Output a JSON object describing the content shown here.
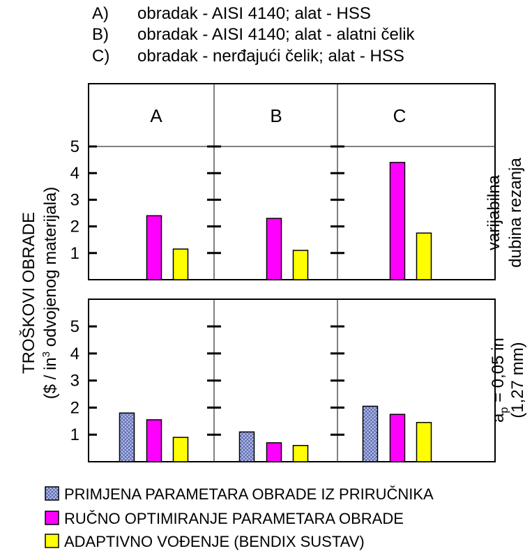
{
  "conditions": [
    {
      "key": "A)",
      "text": "obradak - AISI 4140; alat - HSS"
    },
    {
      "key": "B)",
      "text": "obradak - AISI 4140; alat - alatni čelik"
    },
    {
      "key": "C)",
      "text": "obradak - nerđajući čelik; alat - HSS"
    }
  ],
  "ylabel": {
    "line1": "TROŠKOVI OBRADE",
    "line2_pre": "($ / in",
    "line2_sup": "3",
    "line2_post": " odvojenog materijala)"
  },
  "colors": {
    "handbook": "#9aa6d6",
    "manual": "#ff00ff",
    "adaptive": "#ffff00"
  },
  "legend": [
    {
      "key": "handbook",
      "label": "PRIMJENA PARAMETARA OBRADE IZ PRIRUČNIKA",
      "pattern": "crosshatch"
    },
    {
      "key": "manual",
      "label": "RUČNO OPTIMIRANJE PARAMETARA OBRADE",
      "pattern": "solid"
    },
    {
      "key": "adaptive",
      "label": "ADAPTIVNO VOĐENJE (BENDIX SUSTAV)",
      "pattern": "solid"
    }
  ],
  "chart_data": [
    {
      "type": "bar",
      "panel": "top",
      "side_label_line1": "varijabilna",
      "side_label_line2": "dubina rezanja",
      "categories": [
        "A",
        "B",
        "C"
      ],
      "ylim": [
        0,
        5
      ],
      "yticks": [
        "1",
        "2",
        "3",
        "4",
        "5"
      ],
      "series": [
        {
          "key": "handbook",
          "values": [
            null,
            null,
            null
          ]
        },
        {
          "key": "manual",
          "values": [
            2.4,
            2.3,
            4.4
          ]
        },
        {
          "key": "adaptive",
          "values": [
            1.15,
            1.1,
            1.75
          ]
        }
      ]
    },
    {
      "type": "bar",
      "panel": "bottom",
      "side_label_line1_pre": "a",
      "side_label_line1_sub": "p",
      "side_label_line1_post": " = 0,05 in",
      "side_label_line2": "(1,27 mm)",
      "categories": [
        "A",
        "B",
        "C"
      ],
      "ylim": [
        0,
        5
      ],
      "yticks": [
        "1",
        "2",
        "3",
        "4",
        "5"
      ],
      "series": [
        {
          "key": "handbook",
          "values": [
            1.8,
            1.1,
            2.05
          ]
        },
        {
          "key": "manual",
          "values": [
            1.55,
            0.7,
            1.75
          ]
        },
        {
          "key": "adaptive",
          "values": [
            0.9,
            0.6,
            1.45
          ]
        }
      ]
    }
  ]
}
